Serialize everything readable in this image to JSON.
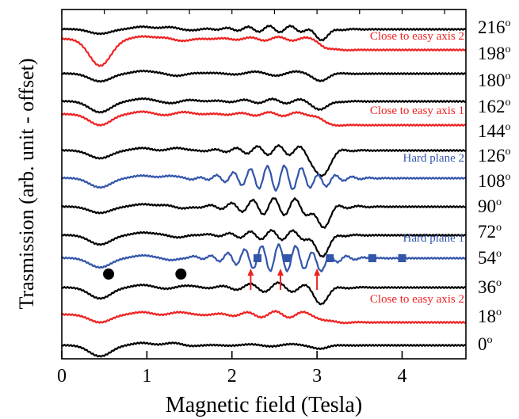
{
  "chart_data": {
    "type": "line",
    "xlabel": "Magnetic field (Tesla)",
    "ylabel": "Trasmission (arb. unit - offset)",
    "xlim": [
      0,
      4.75
    ],
    "x_ticks": [
      "0",
      "1",
      "2",
      "3",
      "4"
    ],
    "y_ticks_shown": false,
    "grid": false,
    "legend": "none",
    "colors": {
      "black": "#000000",
      "red": "#ee2222",
      "blue": "#3355aa"
    },
    "angle_labels": [
      "216",
      "198",
      "180",
      "162",
      "144",
      "126",
      "108",
      "90",
      "72",
      "54",
      "36",
      "18",
      "0"
    ],
    "degree_symbol": "o",
    "annotations": [
      {
        "text": "Close to easy axis 2",
        "color": "#ee2222"
      },
      {
        "text": "Close to easy axis 1",
        "color": "#ee2222"
      },
      {
        "text": "Hard plane 2",
        "color": "#3355aa"
      },
      {
        "text": "Hard plane 1",
        "color": "#3355aa"
      },
      {
        "text": "Close to easy axis 2",
        "color": "#ee2222"
      }
    ],
    "series": [
      {
        "angle": "216",
        "color": "black"
      },
      {
        "angle": "198",
        "color": "red"
      },
      {
        "angle": "180",
        "color": "black"
      },
      {
        "angle": "162",
        "color": "black"
      },
      {
        "angle": "144",
        "color": "red"
      },
      {
        "angle": "126",
        "color": "black"
      },
      {
        "angle": "108",
        "color": "blue"
      },
      {
        "angle": "90",
        "color": "black"
      },
      {
        "angle": "72",
        "color": "black"
      },
      {
        "angle": "54",
        "color": "blue"
      },
      {
        "angle": "36",
        "color": "black"
      },
      {
        "angle": "18",
        "color": "red"
      },
      {
        "angle": "0",
        "color": "black"
      }
    ],
    "markers": {
      "circles_x": [
        0.55,
        1.4
      ],
      "squares_x": [
        2.3,
        2.65,
        3.15,
        3.65,
        4.0
      ],
      "arrows_x": [
        2.22,
        2.57,
        3.0
      ]
    }
  }
}
